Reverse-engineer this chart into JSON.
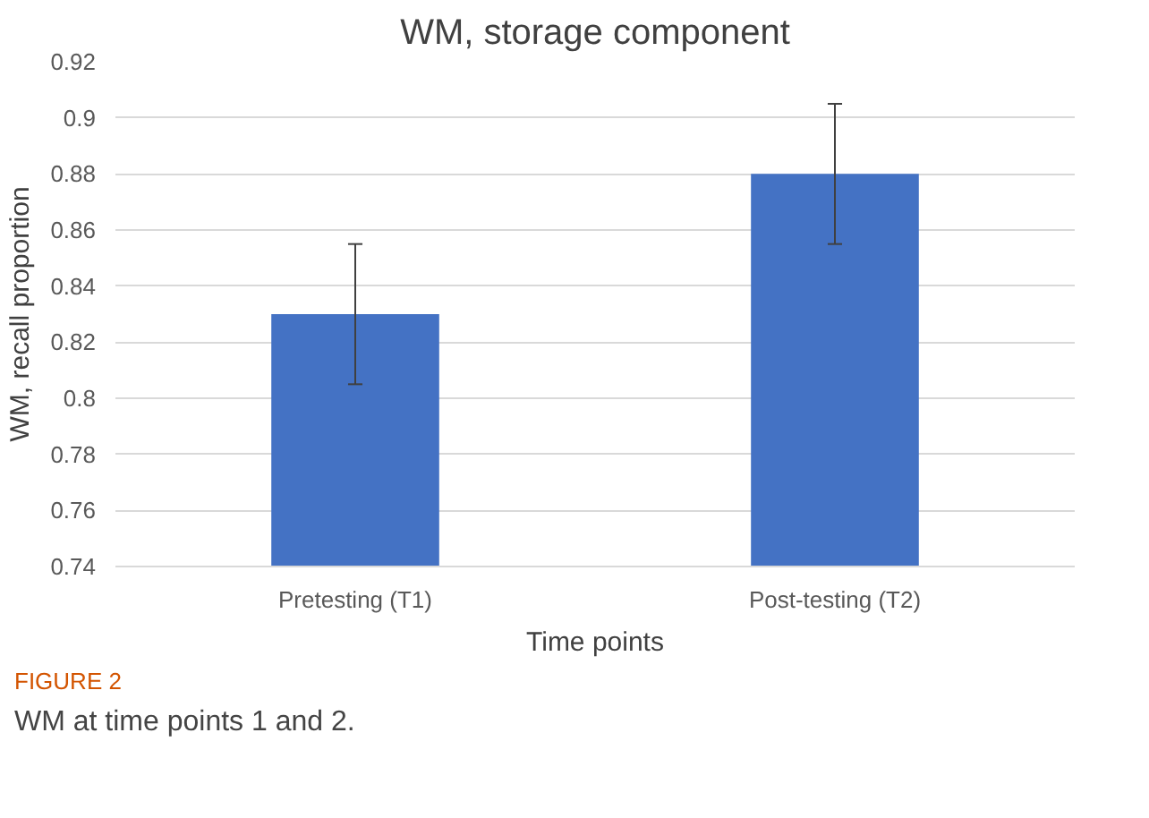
{
  "chart_data": {
    "type": "bar",
    "title": "WM, storage component",
    "xlabel": "Time points",
    "ylabel": "WM, recall proportion",
    "categories": [
      "Pretesting (T1)",
      "Post-testing (T2)"
    ],
    "values": [
      0.83,
      0.88
    ],
    "errors": [
      0.025,
      0.025
    ],
    "color": "#4472c4",
    "ylim": [
      0.74,
      0.92
    ],
    "yticks": [
      0.74,
      0.76,
      0.78,
      {
        "value": 0.8,
        "label": "0.8"
      },
      0.82,
      0.84,
      0.86,
      0.88,
      {
        "value": 0.9,
        "label": "0.9"
      },
      0.92
    ],
    "grid": "y",
    "annotations": [
      "FIGURE 2",
      "WM at time points 1 and 2."
    ]
  }
}
